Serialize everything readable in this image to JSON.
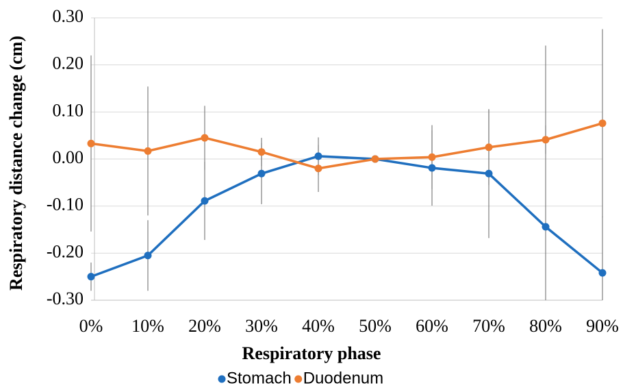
{
  "chart_data": {
    "type": "line",
    "x_label": "Respiratory phase",
    "y_label": "Respiratory distance change (cm)",
    "categories": [
      "0%",
      "10%",
      "20%",
      "30%",
      "40%",
      "50%",
      "60%",
      "70%",
      "80%",
      "90%"
    ],
    "series": [
      {
        "name": "Stomach",
        "color": "#1f6fbf",
        "values": [
          -0.25,
          -0.205,
          -0.089,
          -0.031,
          0.006,
          0.0,
          -0.019,
          -0.031,
          -0.144,
          -0.242
        ],
        "errors": [
          0.03,
          0.075,
          0.083,
          0.065,
          0.04,
          0.0,
          0.08,
          0.137,
          0.385,
          0.12
        ]
      },
      {
        "name": "Duodenum",
        "color": "#ed7d31",
        "values": [
          0.033,
          0.017,
          0.045,
          0.015,
          -0.02,
          0.0,
          0.004,
          0.025,
          0.041,
          0.076
        ],
        "errors": [
          0.187,
          0.137,
          0.068,
          0.03,
          0.05,
          0.0,
          0.068,
          0.08,
          0.03,
          0.2
        ]
      }
    ],
    "error_bar_color": "#7f7f7f",
    "ylim": [
      -0.3,
      0.3
    ],
    "yticks": [
      {
        "value": -0.3,
        "label": "-0.30"
      },
      {
        "value": -0.2,
        "label": "-0.20"
      },
      {
        "value": -0.1,
        "label": "-0.10"
      },
      {
        "value": 0,
        "label": "0.00"
      },
      {
        "value": 0.1,
        "label": "0.10"
      },
      {
        "value": 0.2,
        "label": "0.20"
      },
      {
        "value": 0.3,
        "label": "0.30"
      }
    ],
    "grid": true
  }
}
